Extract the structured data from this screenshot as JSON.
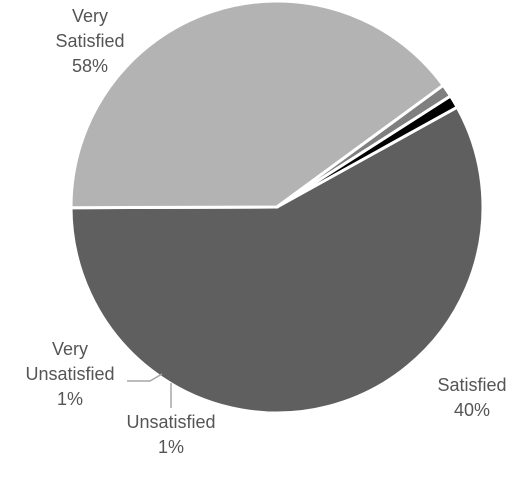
{
  "chart_data": {
    "type": "pie",
    "title": "",
    "slices": [
      {
        "name": "Very Satisfied",
        "label_lines": [
          "Very",
          "Satisfied"
        ],
        "value": 58,
        "percent_label": "58%",
        "color": "#5f5f5f"
      },
      {
        "name": "Satisfied",
        "label_lines": [
          "Satisfied"
        ],
        "value": 40,
        "percent_label": "40%",
        "color": "#b3b3b3"
      },
      {
        "name": "Unsatisfied",
        "label_lines": [
          "Unsatisfied"
        ],
        "value": 1,
        "percent_label": "1%",
        "color": "#7f7f7f"
      },
      {
        "name": "Very Unsatisfied",
        "label_lines": [
          "Very",
          "Unsatisfied"
        ],
        "value": 1,
        "percent_label": "1%",
        "color": "#000000"
      }
    ],
    "legend": "none",
    "data_labels": "outside"
  }
}
